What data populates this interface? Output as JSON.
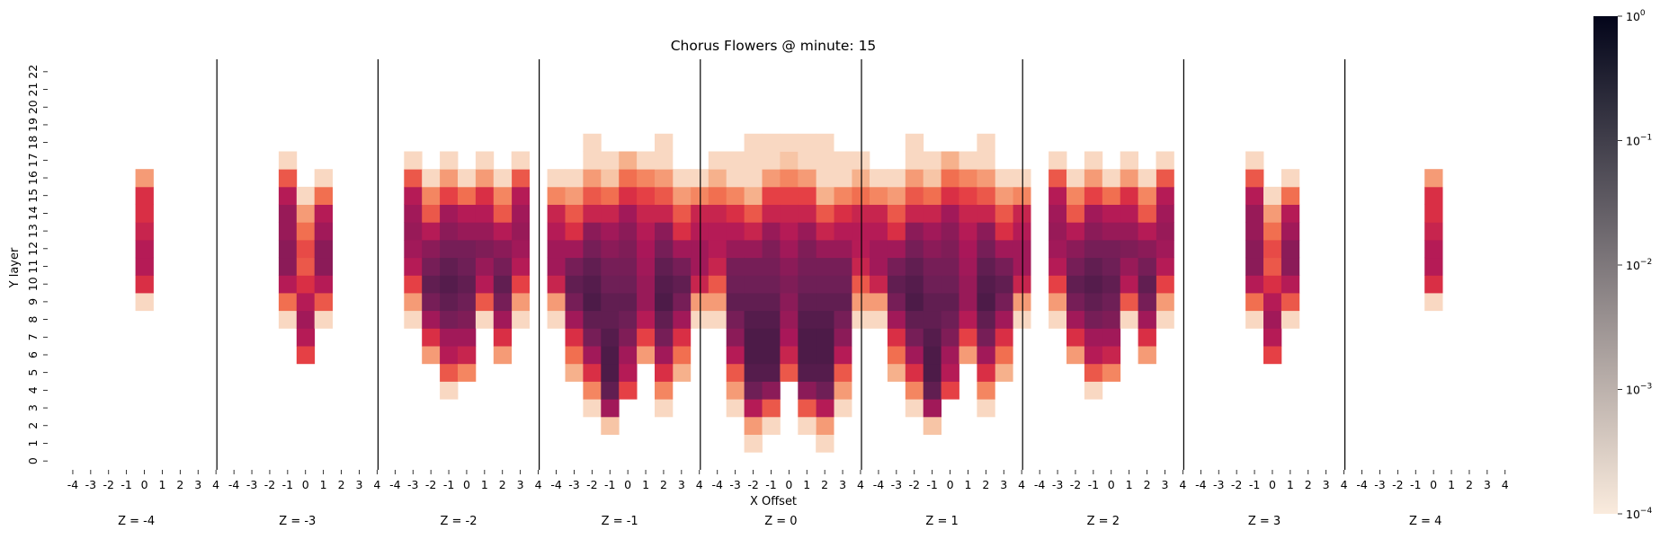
{
  "chart_data": {
    "type": "heatmap",
    "title": "Chorus Flowers @ minute: 15",
    "xlabel": "X Offset",
    "ylabel": "Y layer",
    "x_ticks": [
      "-4",
      "-3",
      "-2",
      "-1",
      "0",
      "1",
      "2",
      "3",
      "4"
    ],
    "y_ticks": [
      "0",
      "1",
      "2",
      "3",
      "4",
      "5",
      "6",
      "7",
      "8",
      "9",
      "10",
      "11",
      "12",
      "13",
      "14",
      "15",
      "16",
      "17",
      "18",
      "19",
      "20",
      "21",
      "22"
    ],
    "scale": "log",
    "colorbar": {
      "min_exponent": -4,
      "max_exponent": 0,
      "base": "10",
      "tick_exponents": [
        "-4",
        "-3",
        "-2",
        "-1",
        "0"
      ],
      "colors": [
        "#faebdd",
        "#f6b48f",
        "#f37651",
        "#e13342",
        "#ad1759",
        "#701f57",
        "#35193e",
        "#03051a"
      ]
    },
    "panels": [
      {
        "label": "Z = -4",
        "columns": [
          {
            "x": 0,
            "from": 9,
            "to": 17,
            "lv": [
              0.05,
              0.45,
              0.55,
              0.55,
              0.5,
              0.45,
              0.45,
              0.2
            ]
          }
        ]
      },
      {
        "label": "Z = -3",
        "columns": [
          {
            "x": -1,
            "from": 8,
            "to": 18,
            "lv": [
              0.05,
              0.3,
              0.55,
              0.65,
              0.65,
              0.62,
              0.62,
              0.55,
              0.35,
              0.05
            ]
          },
          {
            "x": 0,
            "from": 6,
            "to": 16,
            "lv": [
              0.4,
              0.55,
              0.6,
              0.55,
              0.45,
              0.35,
              0.38,
              0.3,
              0.2,
              0.05
            ]
          },
          {
            "x": 1,
            "from": 8,
            "to": 17,
            "lv": [
              0.05,
              0.35,
              0.55,
              0.65,
              0.65,
              0.6,
              0.55,
              0.3,
              0.05
            ]
          }
        ]
      },
      {
        "label": "Z = -2",
        "columns": [
          {
            "x": -3,
            "from": 8,
            "to": 18,
            "lv": [
              0.05,
              0.2,
              0.4,
              0.55,
              0.6,
              0.62,
              0.6,
              0.55,
              0.35,
              0.05
            ]
          },
          {
            "x": -2,
            "from": 6,
            "to": 17,
            "lv": [
              0.2,
              0.45,
              0.6,
              0.7,
              0.75,
              0.7,
              0.65,
              0.55,
              0.35,
              0.25,
              0.05
            ]
          },
          {
            "x": -1,
            "from": 4,
            "to": 18,
            "lv": [
              0.05,
              0.35,
              0.55,
              0.6,
              0.7,
              0.75,
              0.78,
              0.75,
              0.7,
              0.65,
              0.6,
              0.4,
              0.2,
              0.05
            ]
          },
          {
            "x": 0,
            "from": 5,
            "to": 17,
            "lv": [
              0.25,
              0.5,
              0.6,
              0.68,
              0.72,
              0.75,
              0.72,
              0.7,
              0.62,
              0.55,
              0.3,
              0.05
            ]
          },
          {
            "x": 1,
            "from": 8,
            "to": 18,
            "lv": [
              0.05,
              0.35,
              0.55,
              0.62,
              0.68,
              0.62,
              0.55,
              0.45,
              0.2,
              0.05
            ]
          }
        ]
      },
      {
        "label": "Z = -1",
        "columns": [
          {
            "x": -4,
            "from": 8,
            "to": 17,
            "lv": [
              0.05,
              0.2,
              0.5,
              0.6,
              0.6,
              0.55,
              0.5,
              0.25,
              0.05
            ]
          },
          {
            "x": -3,
            "from": 5,
            "to": 17,
            "lv": [
              0.15,
              0.3,
              0.45,
              0.6,
              0.7,
              0.75,
              0.7,
              0.6,
              0.45,
              0.35,
              0.2,
              0.05
            ]
          },
          {
            "x": -2,
            "from": 3,
            "to": 19,
            "lv": [
              0.05,
              0.25,
              0.45,
              0.6,
              0.7,
              0.75,
              0.8,
              0.78,
              0.75,
              0.7,
              0.65,
              0.5,
              0.35,
              0.2,
              0.05,
              0.05
            ]
          },
          {
            "x": -1,
            "from": 2,
            "to": 18,
            "lv": [
              0.1,
              0.6,
              0.75,
              0.8,
              0.8,
              0.78,
              0.75,
              0.75,
              0.72,
              0.7,
              0.65,
              0.6,
              0.5,
              0.3,
              0.1,
              0.05
            ]
          },
          {
            "x": 0,
            "from": 4,
            "to": 18,
            "lv": [
              0.4,
              0.55,
              0.6,
              0.68,
              0.72,
              0.75,
              0.72,
              0.7,
              0.68,
              0.65,
              0.6,
              0.45,
              0.3,
              0.15
            ]
          },
          {
            "x": 1,
            "from": 6,
            "to": 18,
            "lv": [
              0.2,
              0.4,
              0.55,
              0.62,
              0.62,
              0.6,
              0.58,
              0.55,
              0.5,
              0.4,
              0.25,
              0.05
            ]
          }
        ]
      },
      {
        "label": "Z = 0",
        "columns": [
          {
            "x": -4,
            "from": 8,
            "to": 18,
            "lv": [
              0.05,
              0.2,
              0.35,
              0.5,
              0.55,
              0.55,
              0.5,
              0.3,
              0.15,
              0.05
            ]
          },
          {
            "x": -3,
            "from": 3,
            "to": 18,
            "lv": [
              0.05,
              0.2,
              0.35,
              0.55,
              0.65,
              0.7,
              0.75,
              0.72,
              0.7,
              0.62,
              0.55,
              0.45,
              0.25,
              0.05,
              0.05
            ]
          },
          {
            "x": -2,
            "from": 1,
            "to": 19,
            "lv": [
              0.05,
              0.2,
              0.55,
              0.72,
              0.78,
              0.8,
              0.8,
              0.78,
              0.75,
              0.72,
              0.7,
              0.62,
              0.5,
              0.35,
              0.15,
              0.05,
              0.05,
              0.05
            ]
          },
          {
            "x": -1,
            "from": 2,
            "to": 19,
            "lv": [
              0.05,
              0.35,
              0.65,
              0.78,
              0.8,
              0.8,
              0.78,
              0.75,
              0.72,
              0.7,
              0.68,
              0.62,
              0.5,
              0.4,
              0.2,
              0.05,
              0.05
            ]
          },
          {
            "x": 0,
            "from": 5,
            "to": 19,
            "lv": [
              0.35,
              0.5,
              0.58,
              0.62,
              0.65,
              0.68,
              0.65,
              0.6,
              0.55,
              0.5,
              0.4,
              0.25,
              0.1,
              0.05
            ]
          }
        ]
      }
    ]
  }
}
